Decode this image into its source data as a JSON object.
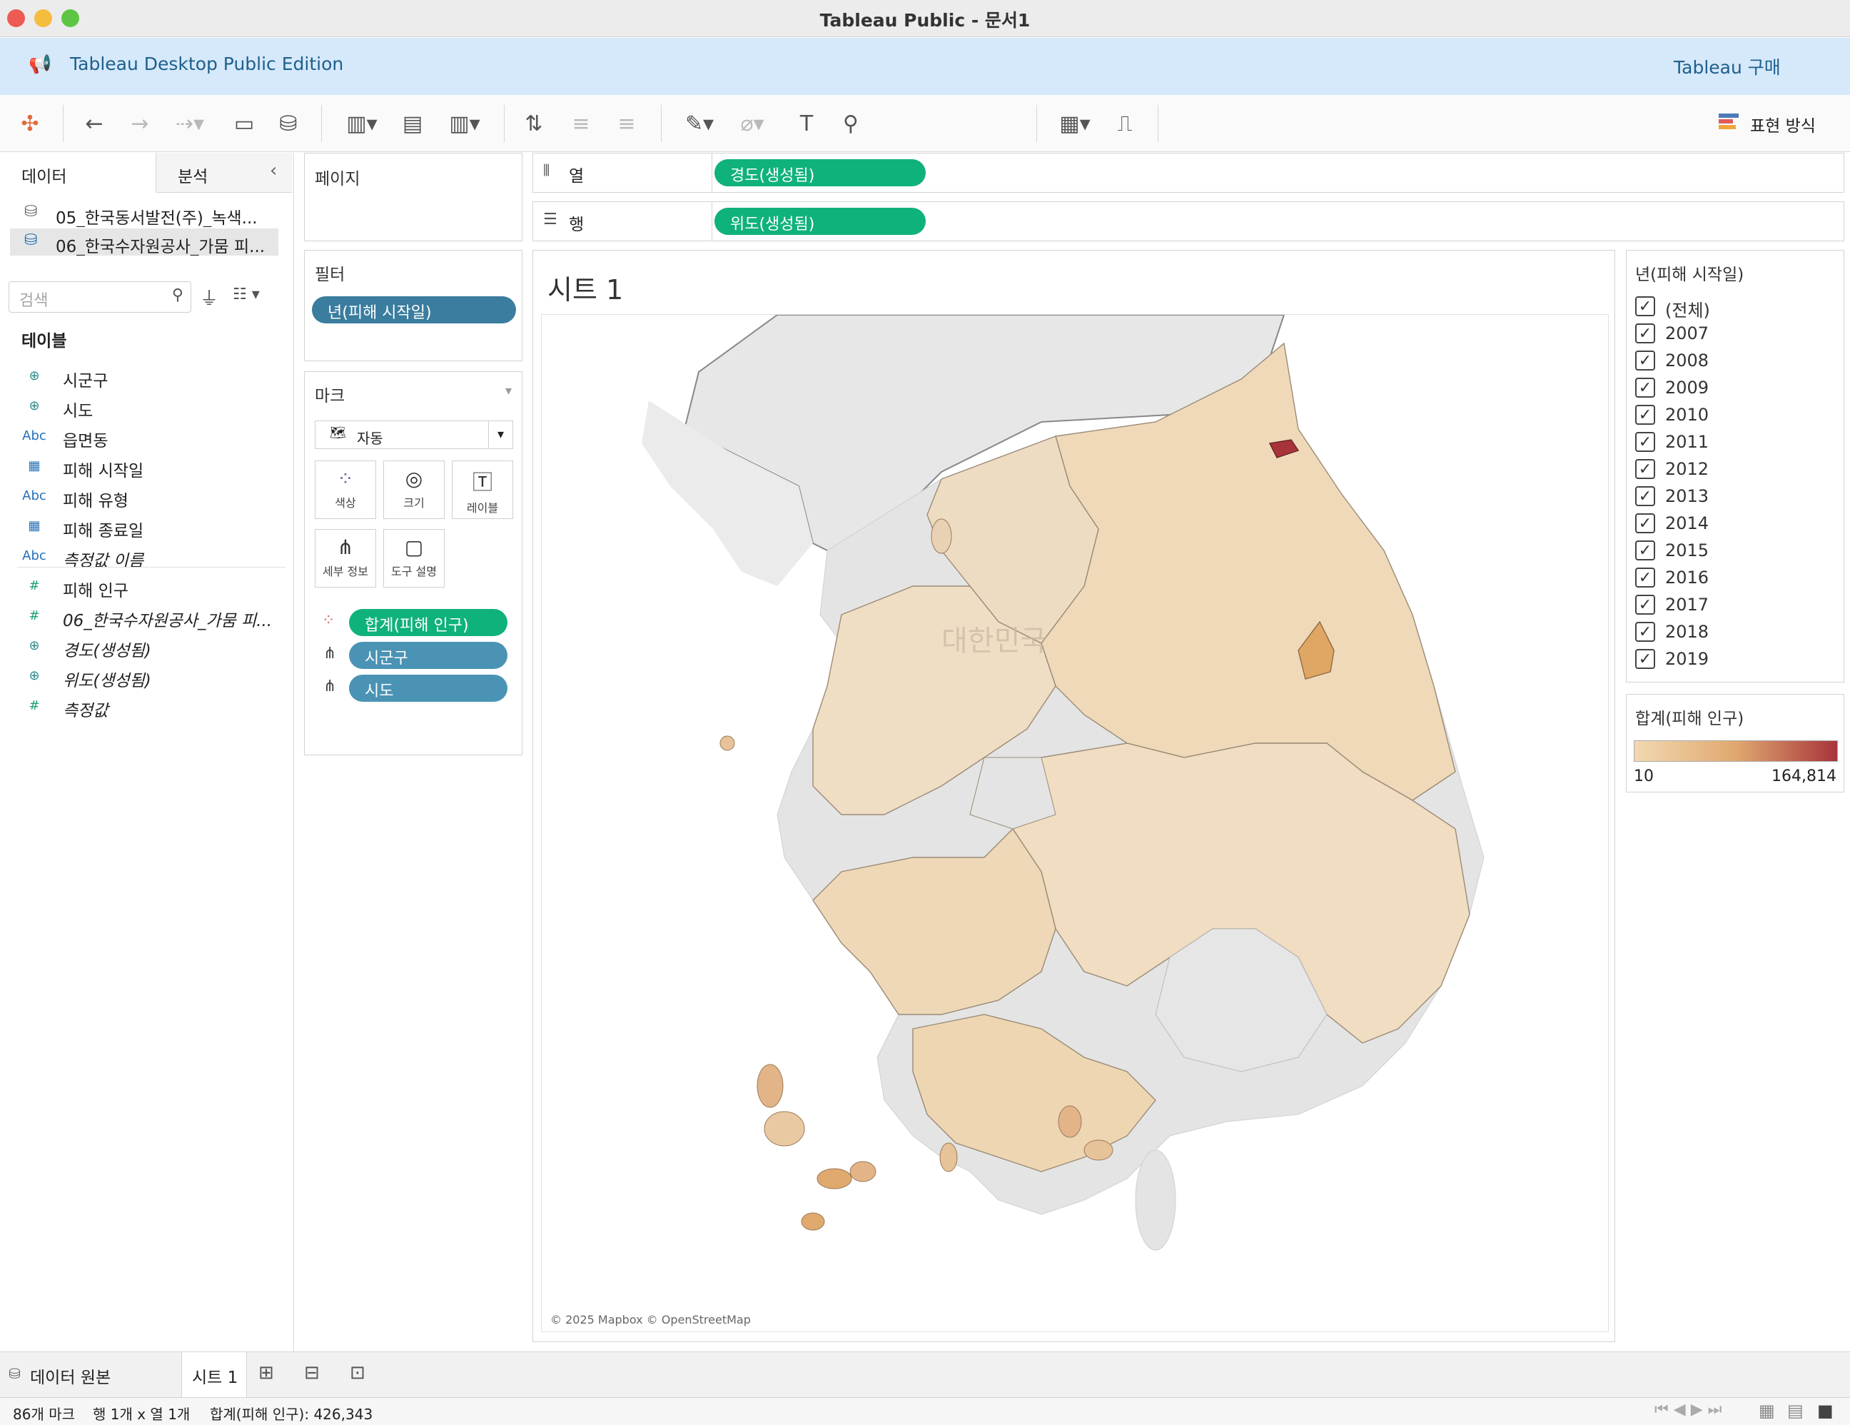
{
  "window": {
    "title": "Tableau Public - 문서1"
  },
  "banner": {
    "edition": "Tableau Desktop Public Edition",
    "buy": "Tableau 구매"
  },
  "toolbar": {
    "show_me": "표현 방식"
  },
  "left_pane": {
    "tabs": [
      "데이터",
      "분석"
    ],
    "datasources": [
      "05_한국동서발전(주)_녹색...",
      "06_한국수자원공사_가뭄 피..."
    ],
    "search_placeholder": "검색",
    "tables_header": "테이블",
    "fields": [
      {
        "icon": "globe-icon",
        "label": "시군구"
      },
      {
        "icon": "globe-icon",
        "label": "시도"
      },
      {
        "icon": "abc-icon",
        "label": "읍면동"
      },
      {
        "icon": "calendar-icon",
        "label": "피해 시작일"
      },
      {
        "icon": "abc-icon",
        "label": "피해 유형"
      },
      {
        "icon": "calendar-icon",
        "label": "피해 종료일"
      },
      {
        "icon": "abc-icon",
        "label": "측정값 이름"
      },
      {
        "icon": "hash-icon",
        "label": "피해 인구"
      },
      {
        "icon": "hash-icon",
        "label": "06_한국수자원공사_가뭄 피..."
      },
      {
        "icon": "globe-icon",
        "label": "경도(생성됨)"
      },
      {
        "icon": "globe-icon",
        "label": "위도(생성됨)"
      },
      {
        "icon": "hash-icon",
        "label": "측정값"
      }
    ]
  },
  "pages": {
    "title": "페이지"
  },
  "filters": {
    "title": "필터",
    "pill": "년(피해 시작일)"
  },
  "marks": {
    "title": "마크",
    "type": "자동",
    "buttons": [
      "색상",
      "크기",
      "레이블",
      "세부 정보",
      "도구 설명"
    ],
    "pills": [
      "합계(피해 인구)",
      "시군구",
      "시도"
    ]
  },
  "shelves": {
    "columns_label": "열",
    "columns_pill": "경도(생성됨)",
    "rows_label": "행",
    "rows_pill": "위도(생성됨)"
  },
  "sheet": {
    "title": "시트 1",
    "map_label": "대한민국",
    "attribution": "© 2025 Mapbox © OpenStreetMap"
  },
  "year_filter": {
    "title": "년(피해 시작일)",
    "items": [
      "(전체)",
      "2007",
      "2008",
      "2009",
      "2010",
      "2011",
      "2012",
      "2013",
      "2014",
      "2015",
      "2016",
      "2017",
      "2018",
      "2019"
    ]
  },
  "color_legend": {
    "title": "합계(피해 인구)",
    "min": "10",
    "max": "164,814",
    "colors": [
      "#f1d9b1",
      "#e0a870",
      "#a8343a"
    ]
  },
  "bottom_tabs": {
    "datasource": "데이터 원본",
    "sheet": "시트 1"
  },
  "status": {
    "marks": "86개 마크",
    "dims": "행 1개 x 열 1개",
    "sum": "합계(피해 인구): 426,343"
  }
}
